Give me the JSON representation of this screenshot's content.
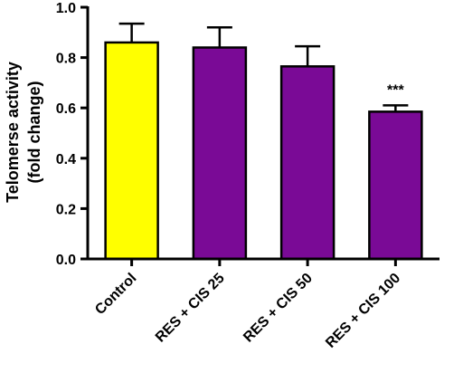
{
  "chart_data": {
    "type": "bar",
    "categories": [
      "Control",
      "RES + CIS 25",
      "RES + CIS 50",
      "RES + CIS 100"
    ],
    "values": [
      0.86,
      0.84,
      0.765,
      0.585
    ],
    "errors": [
      0.075,
      0.08,
      0.08,
      0.025
    ],
    "annotations": [
      "",
      "",
      "",
      "***"
    ],
    "ylabel_lines": [
      "Telomerse activity",
      "(fold change)"
    ],
    "ylim": [
      0,
      1.0
    ],
    "yticks": [
      "0.0",
      "0.2",
      "0.4",
      "0.6",
      "0.8",
      "1.0"
    ],
    "colors": [
      "#ffff00",
      "#7a0a96",
      "#7a0a96",
      "#7a0a96"
    ],
    "grid": false
  }
}
